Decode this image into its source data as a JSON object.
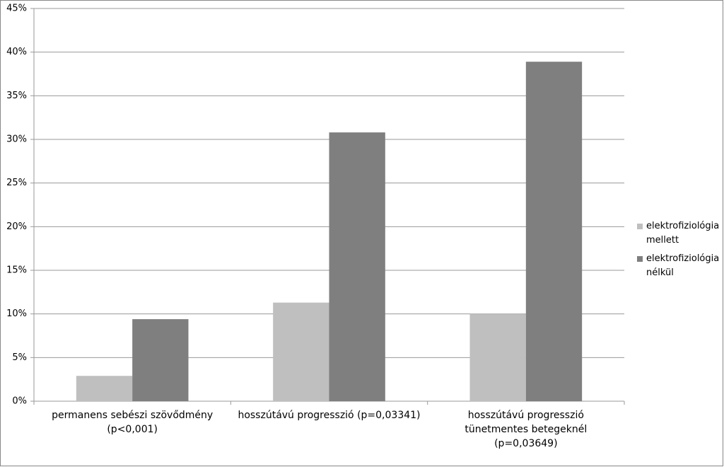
{
  "chart_data": {
    "type": "bar",
    "categories": [
      "permanens sebészi szövődmény (p<0,001)",
      "hosszútávú progresszió (p=0,03341)",
      "hosszútávú progresszió tünetmentes betegeknél (p=0,03649)"
    ],
    "series": [
      {
        "name": "elektrofiziológia mellett",
        "color": "#bfbfbf",
        "values": [
          2.9,
          11.3,
          10.0
        ]
      },
      {
        "name": "elektrofiziológia nélkül",
        "color": "#7f7f7f",
        "values": [
          9.4,
          30.8,
          38.9
        ]
      }
    ],
    "ylim": [
      0,
      45
    ],
    "yticks": [
      {
        "value": 0,
        "label": "0%"
      },
      {
        "value": 5,
        "label": "5%"
      },
      {
        "value": 10,
        "label": "10%"
      },
      {
        "value": 15,
        "label": "15%"
      },
      {
        "value": 20,
        "label": "20%"
      },
      {
        "value": 25,
        "label": "25%"
      },
      {
        "value": 30,
        "label": "30%"
      },
      {
        "value": 35,
        "label": "35%"
      },
      {
        "value": 40,
        "label": "40%"
      },
      {
        "value": 45,
        "label": "45%"
      }
    ],
    "grid": true,
    "legend": "right"
  }
}
